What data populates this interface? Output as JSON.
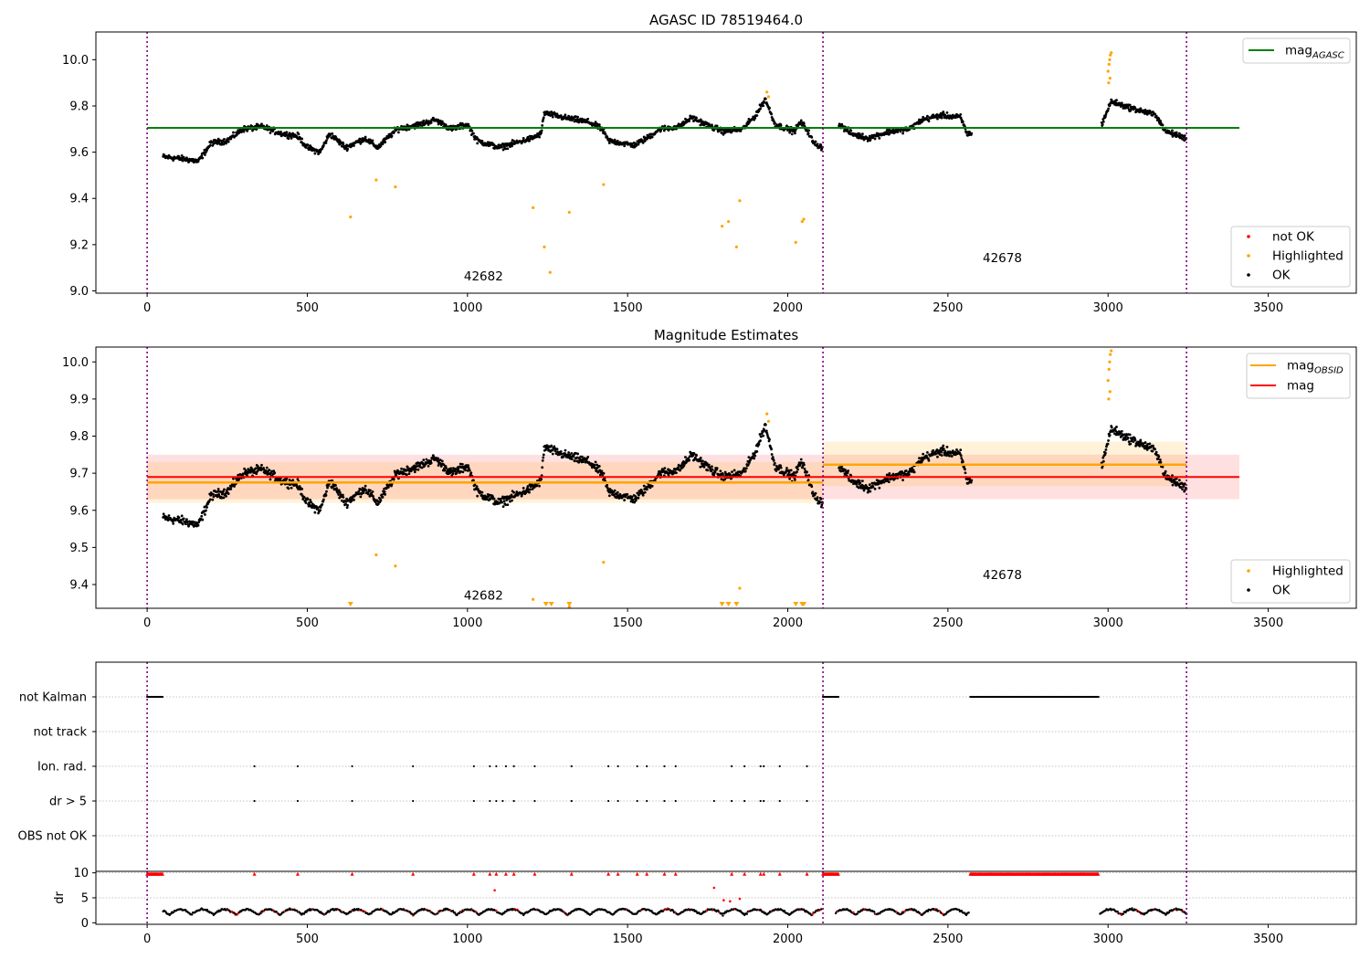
{
  "chart_data": [
    {
      "type": "scatter",
      "title": "AGASC ID 78519464.0",
      "xlabel": "",
      "ylabel": "",
      "xlim": [
        -160,
        3775
      ],
      "ylim": [
        8.99,
        10.12
      ],
      "xticks": [
        0,
        500,
        1000,
        1500,
        2000,
        2500,
        3000,
        3500
      ],
      "yticks": [
        9.0,
        9.2,
        9.4,
        9.6,
        9.8,
        10.0
      ],
      "ytick_labels": [
        "9.0",
        "9.2",
        "9.4",
        "9.6",
        "9.8",
        "10.0"
      ],
      "obs_boundaries": [
        0,
        2110,
        3245
      ],
      "obs_labels": [
        {
          "text": "42682",
          "x": 1050,
          "y": 9.045
        },
        {
          "text": "42678",
          "x": 2670,
          "y": 9.125
        }
      ],
      "lines": [
        {
          "name": "mag",
          "subscript": "AGASC",
          "color": "#008000",
          "y": 9.705,
          "x": [
            0,
            3410
          ]
        }
      ],
      "legend_top": [
        {
          "label": "mag",
          "subscript": "AGASC",
          "color": "#008000",
          "style": "line"
        }
      ],
      "legend_bottom": [
        {
          "label": "not OK",
          "color": "#ff0000",
          "style": "marker"
        },
        {
          "label": "Highlighted",
          "color": "#ffa500",
          "style": "marker"
        },
        {
          "label": "OK",
          "color": "#000000",
          "style": "marker"
        }
      ],
      "ok_segments": [
        [
          50,
          9.58
        ],
        [
          120,
          9.57
        ],
        [
          160,
          9.56
        ],
        [
          200,
          9.64
        ],
        [
          250,
          9.65
        ],
        [
          300,
          9.7
        ],
        [
          360,
          9.71
        ],
        [
          420,
          9.68
        ],
        [
          470,
          9.67
        ],
        [
          500,
          9.62
        ],
        [
          540,
          9.6
        ],
        [
          570,
          9.68
        ],
        [
          620,
          9.62
        ],
        [
          680,
          9.66
        ],
        [
          720,
          9.62
        ],
        [
          780,
          9.7
        ],
        [
          850,
          9.72
        ],
        [
          900,
          9.74
        ],
        [
          950,
          9.7
        ],
        [
          1000,
          9.72
        ],
        [
          1030,
          9.65
        ],
        [
          1100,
          9.62
        ],
        [
          1200,
          9.66
        ],
        [
          1230,
          9.68
        ],
        [
          1240,
          9.77
        ],
        [
          1300,
          9.75
        ],
        [
          1380,
          9.73
        ],
        [
          1420,
          9.7
        ],
        [
          1440,
          9.65
        ],
        [
          1520,
          9.63
        ],
        [
          1560,
          9.66
        ],
        [
          1600,
          9.7
        ],
        [
          1660,
          9.71
        ],
        [
          1700,
          9.75
        ],
        [
          1760,
          9.71
        ],
        [
          1800,
          9.69
        ],
        [
          1860,
          9.7
        ],
        [
          1900,
          9.76
        ],
        [
          1930,
          9.83
        ],
        [
          1960,
          9.72
        ],
        [
          2020,
          9.69
        ],
        [
          2040,
          9.73
        ],
        [
          2060,
          9.7
        ],
        [
          2080,
          9.64
        ],
        [
          2108,
          9.62
        ]
      ],
      "ok_segments_2": [
        [
          2160,
          9.72
        ],
        [
          2200,
          9.68
        ],
        [
          2250,
          9.66
        ],
        [
          2320,
          9.69
        ],
        [
          2380,
          9.7
        ],
        [
          2420,
          9.74
        ],
        [
          2480,
          9.76
        ],
        [
          2540,
          9.75
        ],
        [
          2560,
          9.68
        ],
        [
          2575,
          9.68
        ]
      ],
      "ok_segments_3": [
        [
          2980,
          9.72
        ],
        [
          3010,
          9.82
        ],
        [
          3050,
          9.8
        ],
        [
          3100,
          9.78
        ],
        [
          3150,
          9.76
        ],
        [
          3180,
          9.69
        ],
        [
          3245,
          9.66
        ]
      ],
      "highlighted": [
        [
          635,
          9.32
        ],
        [
          715,
          9.48
        ],
        [
          775,
          9.45
        ],
        [
          1205,
          9.36
        ],
        [
          1240,
          9.19
        ],
        [
          1258,
          9.08
        ],
        [
          1318,
          9.34
        ],
        [
          1425,
          9.46
        ],
        [
          1795,
          9.28
        ],
        [
          1815,
          9.3
        ],
        [
          1840,
          9.19
        ],
        [
          1850,
          9.39
        ],
        [
          2025,
          9.21
        ],
        [
          2045,
          9.3
        ],
        [
          2050,
          9.31
        ],
        [
          1935,
          9.86
        ],
        [
          1940,
          9.84
        ],
        [
          3000,
          9.95
        ],
        [
          3003,
          9.98
        ],
        [
          3005,
          10.0
        ],
        [
          3007,
          10.02
        ],
        [
          3010,
          10.03
        ],
        [
          3002,
          9.9
        ],
        [
          3006,
          9.92
        ]
      ]
    },
    {
      "type": "scatter",
      "title": "Magnitude Estimates",
      "xlabel": "",
      "ylabel": "",
      "xlim": [
        -160,
        3775
      ],
      "ylim": [
        9.336,
        10.04
      ],
      "xticks": [
        0,
        500,
        1000,
        1500,
        2000,
        2500,
        3000,
        3500
      ],
      "yticks": [
        9.4,
        9.5,
        9.6,
        9.7,
        9.8,
        9.9,
        10.0
      ],
      "ytick_labels": [
        "9.4",
        "9.5",
        "9.6",
        "9.7",
        "9.8",
        "9.9",
        "10.0"
      ],
      "obs_boundaries": [
        0,
        2110,
        3245
      ],
      "obs_labels": [
        {
          "text": "42682",
          "x": 1050,
          "y": 9.36
        },
        {
          "text": "42678",
          "x": 2670,
          "y": 9.415
        }
      ],
      "mag_line": {
        "label": "mag",
        "color": "#ff0000",
        "y": 9.69,
        "band": [
          9.63,
          9.75
        ],
        "x": [
          0,
          3410
        ]
      },
      "mag_obsid": [
        {
          "x": [
            0,
            2110
          ],
          "y": 9.675,
          "band": [
            9.62,
            9.73
          ]
        },
        {
          "x": [
            2110,
            3245
          ],
          "y": 9.723,
          "band": [
            9.665,
            9.785
          ]
        }
      ],
      "legend_top": [
        {
          "label": "mag",
          "subscript": "OBSID",
          "color": "#ffa500",
          "style": "line"
        },
        {
          "label": "mag",
          "subscript": "",
          "color": "#ff0000",
          "style": "line"
        }
      ],
      "legend_bottom": [
        {
          "label": "Highlighted",
          "color": "#ffa500",
          "style": "marker"
        },
        {
          "label": "OK",
          "color": "#000000",
          "style": "marker"
        }
      ],
      "low_markers": [
        635,
        1245,
        1262,
        1318,
        1795,
        1815,
        1840,
        2025,
        2045,
        2050
      ]
    },
    {
      "type": "scatter",
      "title": "",
      "xlim": [
        -160,
        3775
      ],
      "xticks": [
        0,
        500,
        1000,
        1500,
        2000,
        2500,
        3000,
        3500
      ],
      "categories": [
        "not Kalman",
        "not track",
        "Ion. rad.",
        "dr > 5",
        "OBS not OK"
      ],
      "obs_boundaries": [
        0,
        2110,
        3245
      ],
      "flags": {
        "not Kalman": [
          [
            0,
            50
          ],
          [
            2110,
            2160
          ],
          [
            2570,
            2970
          ]
        ],
        "not track": [],
        "Ion. rad.": [
          335,
          470,
          640,
          830,
          1020,
          1070,
          1090,
          1120,
          1145,
          1210,
          1325,
          1440,
          1470,
          1530,
          1560,
          1615,
          1650,
          1825,
          1865,
          1915,
          1925,
          1975,
          2060
        ],
        "dr > 5": [
          335,
          470,
          640,
          830,
          1020,
          1070,
          1090,
          1110,
          1145,
          1210,
          1325,
          1440,
          1470,
          1530,
          1560,
          1615,
          1650,
          1770,
          1825,
          1865,
          1915,
          1925,
          1975,
          2060
        ],
        "OBS not OK": []
      }
    },
    {
      "type": "scatter",
      "title": "",
      "xlabel": "",
      "ylabel": "dr",
      "xlim": [
        -160,
        3775
      ],
      "ylim": [
        -0.3,
        10.3
      ],
      "xticks": [
        0,
        500,
        1000,
        1500,
        2000,
        2500,
        3000,
        3500
      ],
      "yticks": [
        0,
        5,
        10
      ],
      "ytick_labels": [
        "0",
        "5",
        "10"
      ],
      "obs_boundaries": [
        0,
        2110,
        3245
      ],
      "capped_red": [
        [
          0,
          50
        ],
        [
          2110,
          2160
        ],
        [
          2570,
          2970
        ]
      ],
      "capped_red_points": [
        335,
        470,
        640,
        830,
        1020,
        1070,
        1090,
        1120,
        1145,
        1210,
        1325,
        1440,
        1470,
        1530,
        1560,
        1615,
        1650,
        1825,
        1865,
        1915,
        1925,
        1975,
        2060
      ],
      "red_high": [
        [
          1085,
          6.5
        ],
        [
          1770,
          7.0
        ],
        [
          1850,
          4.8
        ],
        [
          1800,
          4.5
        ],
        [
          1820,
          4.3
        ]
      ]
    }
  ]
}
